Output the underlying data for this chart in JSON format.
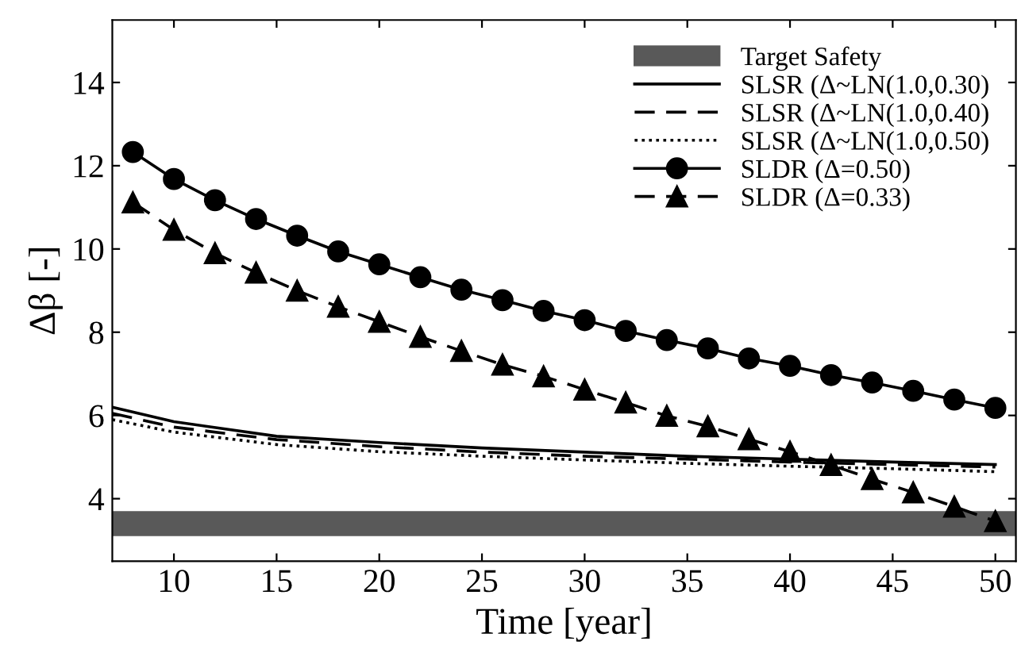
{
  "chart_data": {
    "type": "line",
    "xlabel": "Time [year]",
    "ylabel": "Δβ [-]",
    "xlim": [
      7,
      51
    ],
    "ylim": [
      2.5,
      15.5
    ],
    "xticks": [
      10,
      15,
      20,
      25,
      30,
      35,
      40,
      45,
      50
    ],
    "yticks": [
      4,
      6,
      8,
      10,
      12,
      14
    ],
    "grid": false,
    "legend": "top right",
    "bands": [
      {
        "axis": "y",
        "from": 3.1,
        "to": 3.7,
        "label": "Target Safety",
        "color": "#595959"
      }
    ],
    "series": [
      {
        "name": "SLSR (Δ~LN(1.0,0.30)",
        "color": "#000000",
        "line_style": "solid",
        "marker": "none",
        "x": [
          7,
          10,
          15,
          20,
          25,
          30,
          35,
          40,
          45,
          50
        ],
        "values": [
          6.2,
          5.85,
          5.5,
          5.35,
          5.22,
          5.12,
          5.02,
          4.95,
          4.88,
          4.82
        ]
      },
      {
        "name": "SLSR (Δ~LN(1.0,0.40)",
        "color": "#000000",
        "line_style": "dashed",
        "marker": "none",
        "x": [
          7,
          10,
          15,
          20,
          25,
          30,
          35,
          40,
          45,
          50
        ],
        "values": [
          6.05,
          5.72,
          5.42,
          5.25,
          5.12,
          5.02,
          4.95,
          4.88,
          4.82,
          4.76
        ]
      },
      {
        "name": "SLSR (Δ~LN(1.0,0.50)",
        "color": "#000000",
        "line_style": "dotted",
        "marker": "none",
        "x": [
          7,
          10,
          15,
          20,
          25,
          30,
          35,
          40,
          45,
          50
        ],
        "values": [
          5.9,
          5.6,
          5.3,
          5.13,
          5.02,
          4.93,
          4.85,
          4.78,
          4.72,
          4.65
        ]
      },
      {
        "name": "SLDR (Δ=0.50)",
        "color": "#000000",
        "line_style": "solid",
        "marker": "circle",
        "x": [
          8,
          10,
          12,
          14,
          16,
          18,
          20,
          22,
          24,
          26,
          28,
          30,
          32,
          34,
          36,
          38,
          40,
          42,
          44,
          46,
          48,
          50
        ],
        "values": [
          12.33,
          11.68,
          11.17,
          10.72,
          10.32,
          9.94,
          9.63,
          9.32,
          9.02,
          8.77,
          8.51,
          8.29,
          8.03,
          7.81,
          7.61,
          7.37,
          7.19,
          6.97,
          6.79,
          6.59,
          6.38,
          6.18
        ]
      },
      {
        "name": "SLDR (Δ=0.33)",
        "color": "#000000",
        "line_style": "dashed",
        "marker": "triangle",
        "x": [
          8,
          10,
          12,
          14,
          16,
          18,
          20,
          22,
          24,
          26,
          28,
          30,
          32,
          34,
          36,
          38,
          40,
          42,
          44,
          46,
          48,
          50
        ],
        "values": [
          11.12,
          10.46,
          9.9,
          9.43,
          9.0,
          8.61,
          8.25,
          7.89,
          7.55,
          7.22,
          6.94,
          6.62,
          6.31,
          5.99,
          5.74,
          5.43,
          5.13,
          4.81,
          4.47,
          4.15,
          3.81,
          3.46
        ]
      }
    ]
  }
}
